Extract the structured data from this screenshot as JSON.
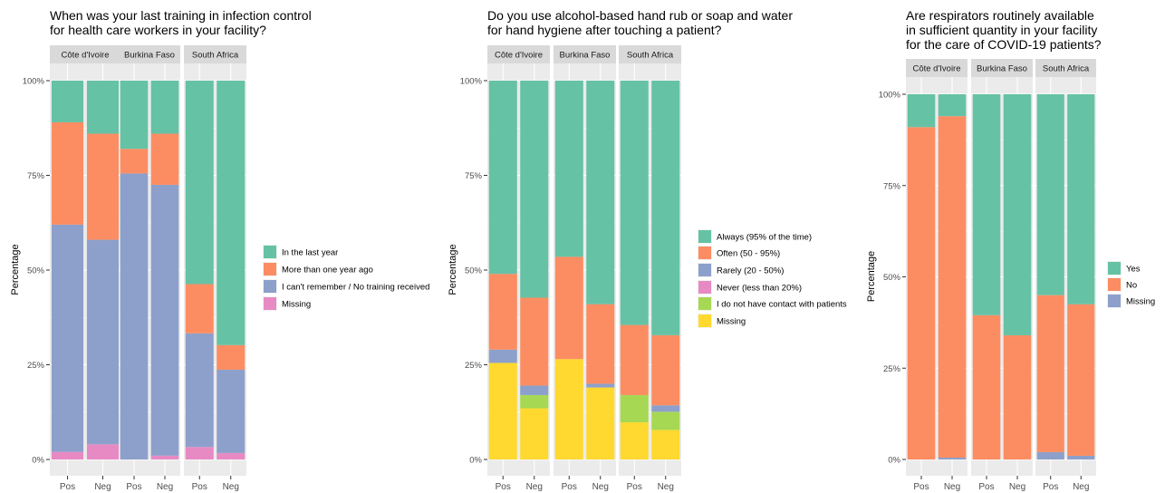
{
  "chart_data": [
    {
      "type": "bar",
      "stacked": true,
      "title_lines": [
        "When was your last training in infection control",
        "for health care workers in your facility?"
      ],
      "ylabel": "Percentage",
      "xlabel": "",
      "ylim": [
        0,
        1
      ],
      "yticks": [
        {
          "value": 0,
          "label": "0%"
        },
        {
          "value": 0.25,
          "label": "25%"
        },
        {
          "value": 0.5,
          "label": "50%"
        },
        {
          "value": 0.75,
          "label": "75%"
        },
        {
          "value": 1,
          "label": "100%"
        }
      ],
      "legend_position": "right",
      "categories": [
        "Pos",
        "Neg"
      ],
      "series": [
        {
          "name": "Missing",
          "color": "#E78AC3"
        },
        {
          "name": "I can't remember / No training received",
          "color": "#8DA0CB"
        },
        {
          "name": "More than one year ago",
          "color": "#FC8D62"
        },
        {
          "name": "In the last year",
          "color": "#66C2A5"
        }
      ],
      "legend_order": [
        3,
        2,
        1,
        0
      ],
      "facets": [
        {
          "name": "Côte d'Ivoire",
          "bars": [
            {
              "category": "Pos",
              "values": [
                0.02,
                0.6,
                0.27,
                0.11
              ]
            },
            {
              "category": "Neg",
              "values": [
                0.04,
                0.54,
                0.28,
                0.14
              ]
            }
          ]
        },
        {
          "name": "Burkina Faso",
          "bars": [
            {
              "category": "Pos",
              "values": [
                0.0,
                0.755,
                0.065,
                0.18
              ]
            },
            {
              "category": "Neg",
              "values": [
                0.01,
                0.715,
                0.135,
                0.14
              ]
            }
          ]
        },
        {
          "name": "South Africa",
          "bars": [
            {
              "category": "Pos",
              "values": [
                0.033,
                0.3,
                0.13,
                0.537
              ]
            },
            {
              "category": "Neg",
              "values": [
                0.017,
                0.22,
                0.065,
                0.698
              ]
            }
          ]
        }
      ]
    },
    {
      "type": "bar",
      "stacked": true,
      "title_lines": [
        "Do you use alcohol-based hand rub or soap and water",
        "for hand hygiene after touching a patient?"
      ],
      "ylabel": "Percentage",
      "xlabel": "",
      "ylim": [
        0,
        1
      ],
      "yticks": [
        {
          "value": 0,
          "label": "0%"
        },
        {
          "value": 0.25,
          "label": "25%"
        },
        {
          "value": 0.5,
          "label": "50%"
        },
        {
          "value": 0.75,
          "label": "75%"
        },
        {
          "value": 1,
          "label": "100%"
        }
      ],
      "legend_position": "right",
      "categories": [
        "Pos",
        "Neg"
      ],
      "series": [
        {
          "name": "Missing",
          "color": "#FFD92F"
        },
        {
          "name": "I do not have contact with patients",
          "color": "#A6D854"
        },
        {
          "name": "Never (less than 20%)",
          "color": "#E78AC3"
        },
        {
          "name": "Rarely (20 - 50%)",
          "color": "#8DA0CB"
        },
        {
          "name": "Often (50 - 95%)",
          "color": "#FC8D62"
        },
        {
          "name": "Always (95% of the time)",
          "color": "#66C2A5"
        }
      ],
      "legend_order": [
        5,
        4,
        3,
        2,
        1,
        0
      ],
      "facets": [
        {
          "name": "Côte d'Ivoire",
          "bars": [
            {
              "category": "Pos",
              "values": [
                0.255,
                0.0,
                0.0,
                0.035,
                0.2,
                0.51
              ]
            },
            {
              "category": "Neg",
              "values": [
                0.135,
                0.035,
                0.0,
                0.025,
                0.232,
                0.573
              ]
            }
          ]
        },
        {
          "name": "Burkina Faso",
          "bars": [
            {
              "category": "Pos",
              "values": [
                0.265,
                0.0,
                0.0,
                0.0,
                0.27,
                0.465
              ]
            },
            {
              "category": "Neg",
              "values": [
                0.19,
                0.0,
                0.0,
                0.01,
                0.21,
                0.59
              ]
            }
          ]
        },
        {
          "name": "South Africa",
          "bars": [
            {
              "category": "Pos",
              "values": [
                0.098,
                0.072,
                0.0,
                0.0,
                0.185,
                0.645
              ]
            },
            {
              "category": "Neg",
              "values": [
                0.078,
                0.048,
                0.0,
                0.017,
                0.185,
                0.672
              ]
            }
          ]
        }
      ]
    },
    {
      "type": "bar",
      "stacked": true,
      "title_lines": [
        "Are respirators routinely available",
        "in sufficient quantity in your facility",
        "for the care of COVID-19 patients?"
      ],
      "ylabel": "Percentage",
      "xlabel": "",
      "ylim": [
        0,
        1
      ],
      "yticks": [
        {
          "value": 0,
          "label": "0%"
        },
        {
          "value": 0.25,
          "label": "25%"
        },
        {
          "value": 0.5,
          "label": "50%"
        },
        {
          "value": 0.75,
          "label": "75%"
        },
        {
          "value": 1,
          "label": "100%"
        }
      ],
      "legend_position": "right",
      "categories": [
        "Pos",
        "Neg"
      ],
      "series": [
        {
          "name": "Missing",
          "color": "#8DA0CB"
        },
        {
          "name": "No",
          "color": "#FC8D62"
        },
        {
          "name": "Yes",
          "color": "#66C2A5"
        }
      ],
      "legend_order": [
        2,
        1,
        0
      ],
      "facets": [
        {
          "name": "Côte d'Ivoire",
          "bars": [
            {
              "category": "Pos",
              "values": [
                0.0,
                0.91,
                0.09
              ]
            },
            {
              "category": "Neg",
              "values": [
                0.005,
                0.935,
                0.06
              ]
            }
          ]
        },
        {
          "name": "Burkina Faso",
          "bars": [
            {
              "category": "Pos",
              "values": [
                0.0,
                0.395,
                0.605
              ]
            },
            {
              "category": "Neg",
              "values": [
                0.0,
                0.34,
                0.66
              ]
            }
          ]
        },
        {
          "name": "South Africa",
          "bars": [
            {
              "category": "Pos",
              "values": [
                0.02,
                0.43,
                0.55
              ]
            },
            {
              "category": "Neg",
              "values": [
                0.01,
                0.415,
                0.575
              ]
            }
          ]
        }
      ]
    }
  ]
}
